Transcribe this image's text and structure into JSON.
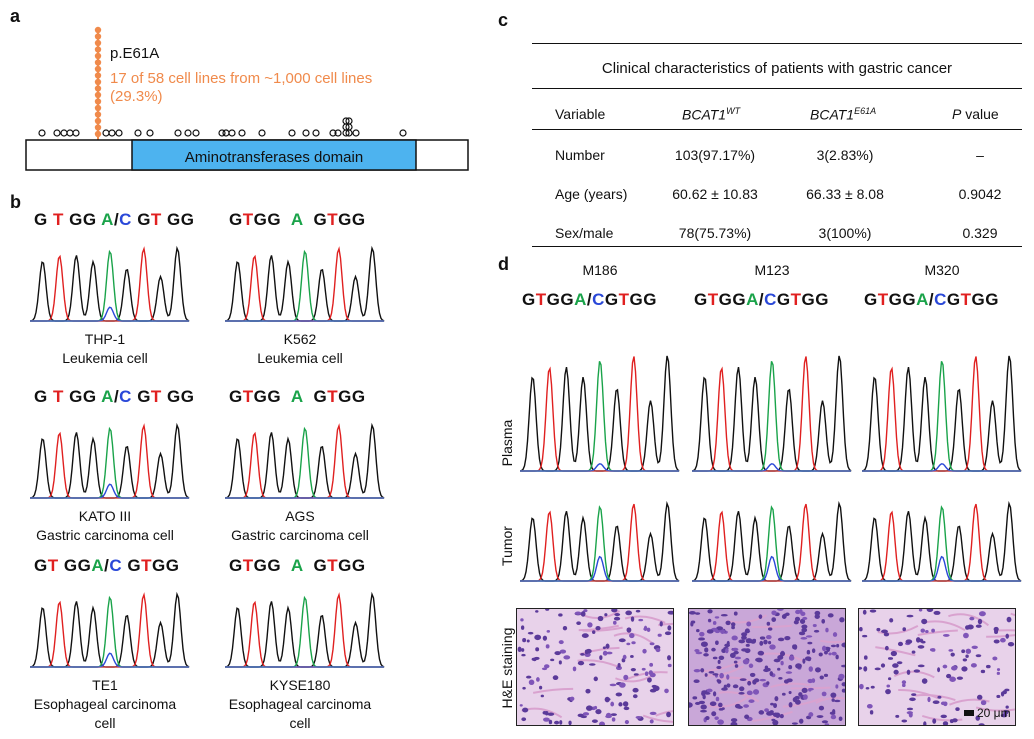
{
  "panels": {
    "a": "a",
    "b": "b",
    "c": "c",
    "d": "d"
  },
  "panel_a": {
    "mutation": "p.E61A",
    "count_line1": "17 of 58 cell lines from ~1,000 cell lines",
    "count_line2": "(29.3%)",
    "domain_label": "Aminotransferases domain",
    "colors": {
      "mutation": "#f08a4b",
      "domain": "#4db3ef"
    }
  },
  "panel_b": {
    "samples": [
      {
        "seq": "G T GG A/C GT GG",
        "name": "THP-1",
        "type": "Leukemia cell",
        "type2": ""
      },
      {
        "seq": "GTGG  A  GTGG",
        "name": "K562",
        "type": "Leukemia cell",
        "type2": ""
      },
      {
        "seq": "G T GG A/C GT GG",
        "name": "KATO III",
        "type": "Gastric carcinoma cell",
        "type2": ""
      },
      {
        "seq": "GTGG  A  GTGG",
        "name": "AGS",
        "type": "Gastric carcinoma cell",
        "type2": ""
      },
      {
        "seq": "GT GGA/C GTGG",
        "name": "TE1",
        "type": "Esophageal carcinoma",
        "type2": "cell"
      },
      {
        "seq": "GTGG  A  GTGG",
        "name": "KYSE180",
        "type": "Esophageal carcinoma",
        "type2": "cell"
      }
    ]
  },
  "panel_c": {
    "title": "Clinical characteristics of patients with gastric cancer",
    "headers": {
      "variable": "Variable",
      "wt": "BCAT1",
      "wt_sup": "WT",
      "mut": "BCAT1",
      "mut_sup": "E61A",
      "p_italic": "P",
      "p_rest": " value"
    },
    "rows": [
      {
        "variable": "Number",
        "wt": "103(97.17%)",
        "mut": "3(2.83%)",
        "p": "–"
      },
      {
        "variable": "Age (years)",
        "wt": "60.62 ± 10.83",
        "mut": "66.33 ± 8.08",
        "p": "0.9042"
      },
      {
        "variable": "Sex/male",
        "wt": "78(75.73%)",
        "mut": "3(100%)",
        "p": "0.329"
      }
    ]
  },
  "panel_d": {
    "patients": [
      {
        "id": "M186",
        "seq": "GTGGA/CGTGG"
      },
      {
        "id": "M123",
        "seq": "GTGGA/CGTGG"
      },
      {
        "id": "M320",
        "seq": "GTGGA/CGTGG"
      }
    ],
    "row_labels": {
      "plasma": "Plasma",
      "tumor": "Tumor",
      "he": "H&E staining"
    },
    "scale_bar": "20 μm"
  }
}
